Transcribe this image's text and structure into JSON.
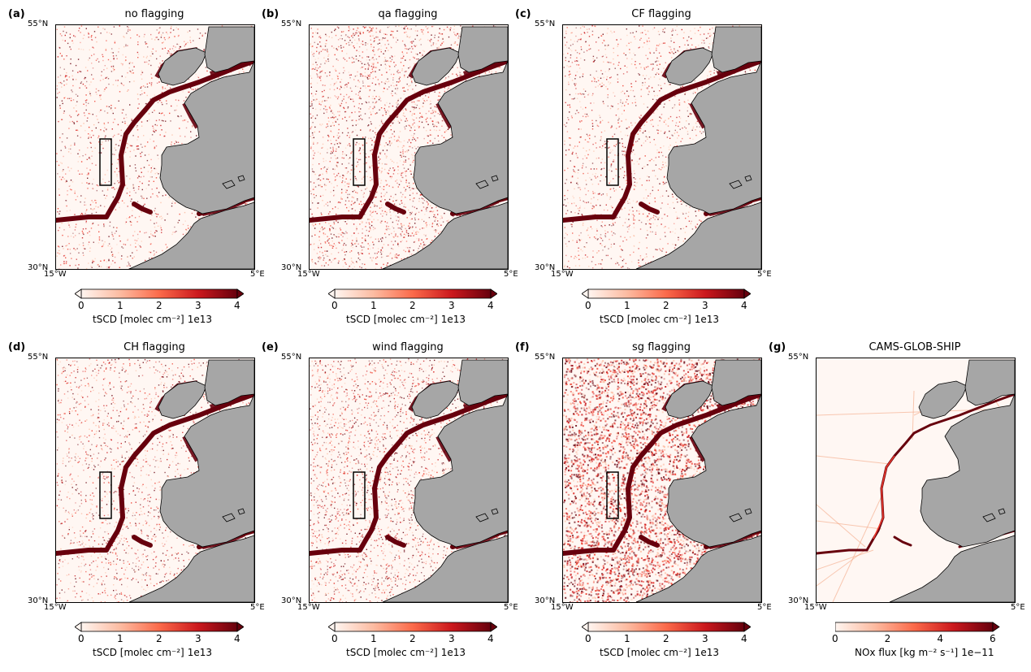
{
  "figure": {
    "panels": [
      {
        "letter": "(a)",
        "title": "no flagging",
        "colorbar": "tscd",
        "noise": 0.18,
        "coarse": false,
        "kind": "obs"
      },
      {
        "letter": "(b)",
        "title": "qa flagging",
        "colorbar": "tscd",
        "noise": 0.32,
        "coarse": false,
        "kind": "obs"
      },
      {
        "letter": "(c)",
        "title": "CF flagging",
        "colorbar": "tscd",
        "noise": 0.2,
        "coarse": false,
        "kind": "obs"
      },
      {
        "letter": "(d)",
        "title": "CH flagging",
        "colorbar": "tscd",
        "noise": 0.2,
        "coarse": false,
        "kind": "obs"
      },
      {
        "letter": "(e)",
        "title": "wind flagging",
        "colorbar": "tscd",
        "noise": 0.3,
        "coarse": false,
        "kind": "obs"
      },
      {
        "letter": "(f)",
        "title": "sg flagging",
        "colorbar": "tscd",
        "noise": 0.55,
        "coarse": true,
        "kind": "obs"
      },
      {
        "letter": "(g)",
        "title": "CAMS-GLOB-SHIP",
        "colorbar": "nox",
        "noise": 0,
        "coarse": false,
        "kind": "model"
      }
    ],
    "axes": {
      "lat_top": "55°N",
      "lat_bottom": "30°N",
      "lon_left": "15°W",
      "lon_right": "5°E"
    },
    "colorbars": {
      "tscd": {
        "ticks": [
          "0",
          "1",
          "2",
          "3",
          "4"
        ],
        "label": "tSCD [molec cm⁻²]",
        "exponent": "1e13",
        "range": [
          0,
          4
        ],
        "extend": "both"
      },
      "nox": {
        "ticks": [
          "0",
          "2",
          "4",
          "6"
        ],
        "label": "NOx flux [kg m⁻² s⁻¹]",
        "exponent": "1e−11",
        "range": [
          0,
          6
        ],
        "extend": "max"
      }
    },
    "colors": {
      "land": "#a6a6a6",
      "coast": "#000000",
      "cmap_low": "#fff5f0",
      "cmap_mid": "#ef3b2c",
      "cmap_high": "#67000d",
      "box": "#000000"
    }
  },
  "chart_data": [
    {
      "type": "heatmap",
      "title": "no flagging",
      "variable": "tSCD",
      "units": "molec cm⁻²",
      "scale": "1e13",
      "colorbar_range": [
        0,
        4
      ],
      "lon_range": [
        -15,
        5
      ],
      "lat_range": [
        30,
        55
      ]
    },
    {
      "type": "heatmap",
      "title": "qa flagging",
      "variable": "tSCD",
      "units": "molec cm⁻²",
      "scale": "1e13",
      "colorbar_range": [
        0,
        4
      ],
      "lon_range": [
        -15,
        5
      ],
      "lat_range": [
        30,
        55
      ]
    },
    {
      "type": "heatmap",
      "title": "CF flagging",
      "variable": "tSCD",
      "units": "molec cm⁻²",
      "scale": "1e13",
      "colorbar_range": [
        0,
        4
      ],
      "lon_range": [
        -15,
        5
      ],
      "lat_range": [
        30,
        55
      ]
    },
    {
      "type": "heatmap",
      "title": "CH flagging",
      "variable": "tSCD",
      "units": "molec cm⁻²",
      "scale": "1e13",
      "colorbar_range": [
        0,
        4
      ],
      "lon_range": [
        -15,
        5
      ],
      "lat_range": [
        30,
        55
      ]
    },
    {
      "type": "heatmap",
      "title": "wind flagging",
      "variable": "tSCD",
      "units": "molec cm⁻²",
      "scale": "1e13",
      "colorbar_range": [
        0,
        4
      ],
      "lon_range": [
        -15,
        5
      ],
      "lat_range": [
        30,
        55
      ]
    },
    {
      "type": "heatmap",
      "title": "sg flagging",
      "variable": "tSCD",
      "units": "molec cm⁻²",
      "scale": "1e13",
      "colorbar_range": [
        0,
        4
      ],
      "lon_range": [
        -15,
        5
      ],
      "lat_range": [
        30,
        55
      ]
    },
    {
      "type": "heatmap",
      "title": "CAMS-GLOB-SHIP",
      "variable": "NOx flux",
      "units": "kg m⁻² s⁻¹",
      "scale": "1e−11",
      "colorbar_range": [
        0,
        6
      ],
      "lon_range": [
        -15,
        5
      ],
      "lat_range": [
        30,
        55
      ]
    }
  ]
}
